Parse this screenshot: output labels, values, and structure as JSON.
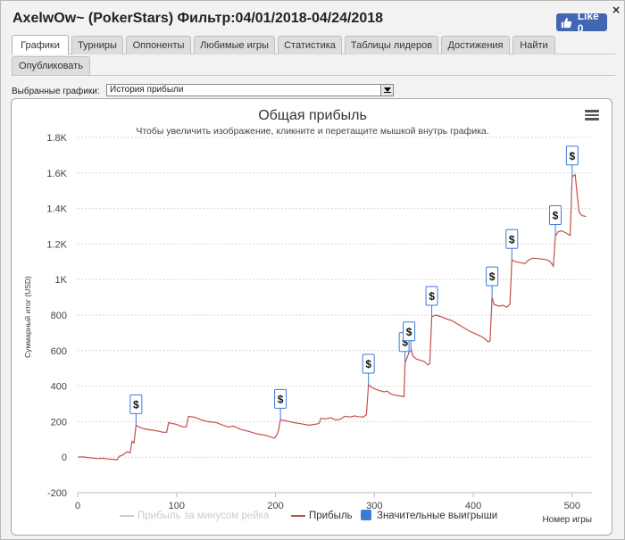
{
  "window": {
    "title": "AxelwOw~ (PokerStars) Фильтр:04/01/2018-04/24/2018",
    "like_label": "Like 0",
    "close_glyph": "×"
  },
  "tabs": [
    {
      "label": "Графики",
      "active": true
    },
    {
      "label": "Турниры",
      "active": false
    },
    {
      "label": "Оппоненты",
      "active": false
    },
    {
      "label": "Любимые игры",
      "active": false
    },
    {
      "label": "Статистика",
      "active": false
    },
    {
      "label": "Таблицы лидеров",
      "active": false
    },
    {
      "label": "Достижения",
      "active": false
    },
    {
      "label": "Найти",
      "active": false
    },
    {
      "label": "Опубликовать",
      "active": false
    }
  ],
  "selector": {
    "label": "Выбранные графики:",
    "value": "История прибыли"
  },
  "chart_data": {
    "type": "line",
    "title": "Общая прибыль",
    "subtitle": "Чтобы увеличить изображение, кликните и перетащите мышкой внутрь графика.",
    "xlabel": "Номер игры",
    "ylabel": "Суммарный итог (USD)",
    "xlim": [
      0,
      520
    ],
    "ylim": [
      -200,
      1800
    ],
    "x_ticks": [
      0,
      100,
      200,
      300,
      400,
      500
    ],
    "y_ticks": [
      -200,
      0,
      200,
      400,
      600,
      800,
      1000,
      1200,
      1400,
      1600,
      1800
    ],
    "y_tick_labels": [
      "-200",
      "0",
      "200",
      "400",
      "600",
      "800",
      "1K",
      "1.2K",
      "1.4K",
      "1.6K",
      "1.8K"
    ],
    "grid": "horizontal-dashed",
    "legend_position": "bottom",
    "series": [
      {
        "name": "Прибыль за минусом рейка",
        "color": "#cccccc",
        "visible": false,
        "points": []
      },
      {
        "name": "Прибыль",
        "color": "#c0504d",
        "visible": true,
        "points": [
          [
            0,
            0
          ],
          [
            5,
            2
          ],
          [
            10,
            -2
          ],
          [
            15,
            -5
          ],
          [
            20,
            -8
          ],
          [
            25,
            -6
          ],
          [
            30,
            -10
          ],
          [
            35,
            -12
          ],
          [
            40,
            -15
          ],
          [
            42,
            5
          ],
          [
            45,
            10
          ],
          [
            50,
            30
          ],
          [
            53,
            25
          ],
          [
            55,
            90
          ],
          [
            57,
            80
          ],
          [
            59,
            180
          ],
          [
            62,
            170
          ],
          [
            67,
            160
          ],
          [
            72,
            155
          ],
          [
            78,
            150
          ],
          [
            83,
            145
          ],
          [
            86,
            140
          ],
          [
            90,
            140
          ],
          [
            92,
            195
          ],
          [
            95,
            190
          ],
          [
            100,
            185
          ],
          [
            104,
            175
          ],
          [
            108,
            170
          ],
          [
            110,
            172
          ],
          [
            112,
            230
          ],
          [
            118,
            225
          ],
          [
            125,
            210
          ],
          [
            132,
            200
          ],
          [
            140,
            195
          ],
          [
            147,
            180
          ],
          [
            153,
            170
          ],
          [
            157,
            175
          ],
          [
            160,
            170
          ],
          [
            164,
            158
          ],
          [
            170,
            150
          ],
          [
            176,
            140
          ],
          [
            182,
            130
          ],
          [
            188,
            125
          ],
          [
            193,
            118
          ],
          [
            196,
            112
          ],
          [
            199,
            108
          ],
          [
            201,
            120
          ],
          [
            203,
            150
          ],
          [
            205,
            210
          ],
          [
            210,
            205
          ],
          [
            218,
            195
          ],
          [
            226,
            188
          ],
          [
            234,
            180
          ],
          [
            240,
            185
          ],
          [
            244,
            190
          ],
          [
            246,
            220
          ],
          [
            250,
            215
          ],
          [
            256,
            222
          ],
          [
            260,
            210
          ],
          [
            265,
            212
          ],
          [
            270,
            230
          ],
          [
            275,
            226
          ],
          [
            280,
            232
          ],
          [
            284,
            228
          ],
          [
            289,
            226
          ],
          [
            292,
            240
          ],
          [
            294,
            408
          ],
          [
            297,
            395
          ],
          [
            300,
            385
          ],
          [
            305,
            375
          ],
          [
            310,
            368
          ],
          [
            313,
            372
          ],
          [
            316,
            358
          ],
          [
            320,
            350
          ],
          [
            325,
            345
          ],
          [
            330,
            340
          ],
          [
            331,
            530
          ],
          [
            333,
            560
          ],
          [
            335,
            590
          ],
          [
            337,
            610
          ],
          [
            339,
            570
          ],
          [
            342,
            555
          ],
          [
            346,
            545
          ],
          [
            350,
            540
          ],
          [
            354,
            520
          ],
          [
            356,
            525
          ],
          [
            358,
            790
          ],
          [
            362,
            800
          ],
          [
            368,
            790
          ],
          [
            372,
            780
          ],
          [
            378,
            770
          ],
          [
            384,
            750
          ],
          [
            390,
            730
          ],
          [
            396,
            710
          ],
          [
            402,
            695
          ],
          [
            408,
            680
          ],
          [
            412,
            665
          ],
          [
            415,
            650
          ],
          [
            417,
            655
          ],
          [
            419,
            900
          ],
          [
            421,
            860
          ],
          [
            426,
            850
          ],
          [
            430,
            855
          ],
          [
            434,
            845
          ],
          [
            437,
            860
          ],
          [
            439,
            1110
          ],
          [
            443,
            1100
          ],
          [
            448,
            1095
          ],
          [
            452,
            1090
          ],
          [
            456,
            1110
          ],
          [
            460,
            1120
          ],
          [
            465,
            1118
          ],
          [
            470,
            1115
          ],
          [
            475,
            1110
          ],
          [
            478,
            1100
          ],
          [
            481,
            1075
          ],
          [
            483,
            1245
          ],
          [
            486,
            1270
          ],
          [
            489,
            1275
          ],
          [
            493,
            1265
          ],
          [
            496,
            1255
          ],
          [
            498,
            1248
          ],
          [
            500,
            1580
          ],
          [
            503,
            1590
          ],
          [
            505,
            1480
          ],
          [
            507,
            1380
          ],
          [
            510,
            1360
          ],
          [
            514,
            1355
          ]
        ]
      }
    ],
    "markers": {
      "name": "Значительные выигрыши",
      "color": "#3f7ad6",
      "symbol": "$",
      "points": [
        [
          59,
          180
        ],
        [
          205,
          210
        ],
        [
          294,
          408
        ],
        [
          331,
          530
        ],
        [
          335,
          590
        ],
        [
          358,
          790
        ],
        [
          419,
          900
        ],
        [
          439,
          1110
        ],
        [
          483,
          1245
        ],
        [
          500,
          1580
        ]
      ]
    }
  }
}
